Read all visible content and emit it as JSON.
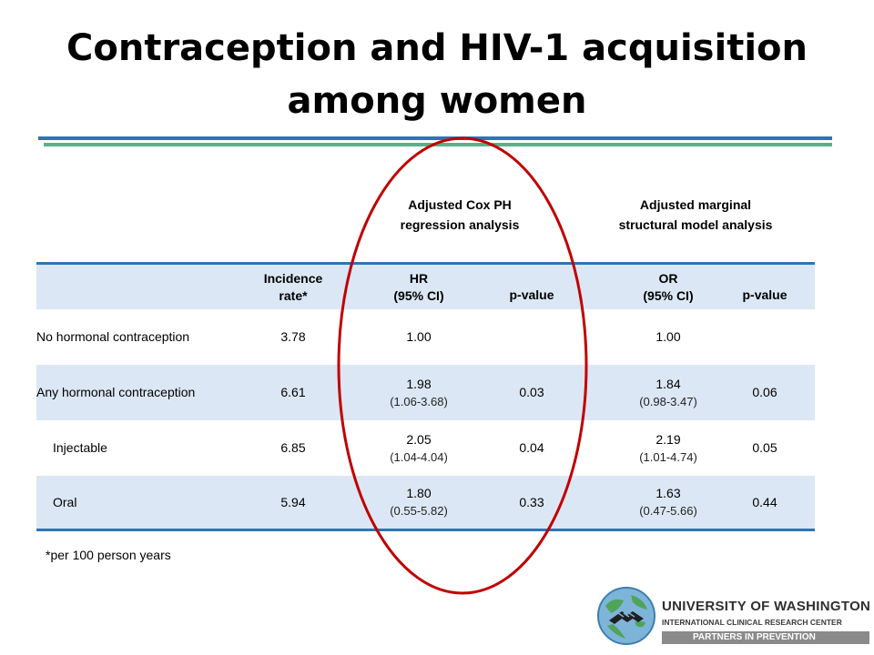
{
  "title": {
    "line1": "Contraception and HIV-1 acquisition",
    "line2": "among women"
  },
  "group_headers": {
    "cox": {
      "line1": "Adjusted Cox PH",
      "line2": "regression analysis"
    },
    "msm": {
      "line1": "Adjusted marginal",
      "line2": "structural model analysis"
    }
  },
  "columns": {
    "incidence": {
      "line1": "Incidence",
      "line2": "rate*"
    },
    "hr": {
      "line1": "HR",
      "line2": "(95% CI)"
    },
    "p1": "p-value",
    "or": {
      "line1": "OR",
      "line2": "(95% CI)"
    },
    "p2": "p-value"
  },
  "rows": [
    {
      "name": "No hormonal contraception",
      "incidence": "3.78",
      "hr": "1.00",
      "hr_ci": "",
      "p1": "",
      "or": "1.00",
      "or_ci": "",
      "p2": ""
    },
    {
      "name": "Any hormonal contraception",
      "incidence": "6.61",
      "hr": "1.98",
      "hr_ci": "(1.06-3.68)",
      "p1": "0.03",
      "or": "1.84",
      "or_ci": "(0.98-3.47)",
      "p2": "0.06"
    },
    {
      "name": "Injectable",
      "incidence": "6.85",
      "hr": "2.05",
      "hr_ci": "(1.04-4.04)",
      "p1": "0.04",
      "or": "2.19",
      "or_ci": "(1.01-4.74)",
      "p2": "0.05"
    },
    {
      "name": "Oral",
      "incidence": "5.94",
      "hr": "1.80",
      "hr_ci": "(0.55-5.82)",
      "p1": "0.33",
      "or": "1.63",
      "or_ci": "(0.47-5.66)",
      "p2": "0.44"
    }
  ],
  "footnote": "*per 100 person years",
  "logo": {
    "line1": "UNIVERSITY OF WASHINGTON",
    "line2": "INTERNATIONAL CLINICAL RESEARCH CENTER",
    "line3": "PARTNERS IN PREVENTION"
  },
  "colors": {
    "rule_blue": "#2e75b6",
    "rule_green": "#5ab08a",
    "row_shade": "#dbe7f4",
    "highlight_ellipse": "#c00000"
  },
  "icons": {
    "logo": "globe-handshake-icon"
  }
}
